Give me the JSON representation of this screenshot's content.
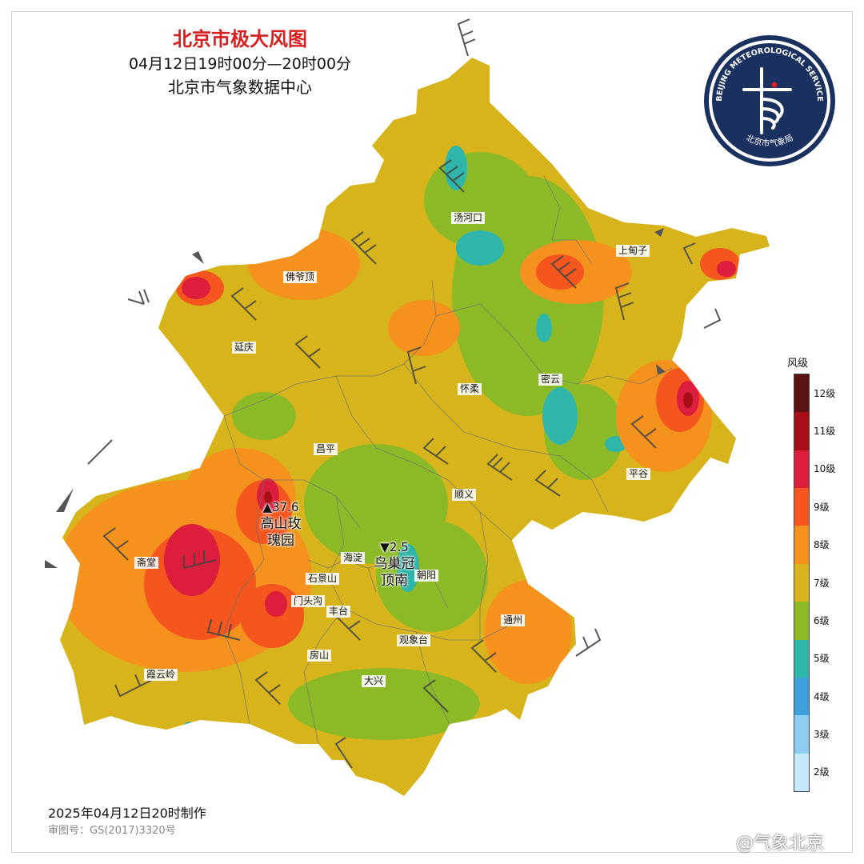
{
  "title": {
    "main": "北京市极大风图",
    "period": "04月12日19时00分—20时00分",
    "source": "北京市气象数据中心"
  },
  "logo": {
    "arc_text": "BEIJING METEOROLOGICAL SERVICE",
    "name": "北京市气象局",
    "icon": "meteorological-service-emblem"
  },
  "places": {
    "tanghekou": "汤河口",
    "shangdianzi": "上甸子",
    "foyeding": "佛爷顶",
    "yanqing": "延庆",
    "huairou": "怀柔",
    "miyun": "密云",
    "changping": "昌平",
    "pinggu": "平谷",
    "shunyi": "顺义",
    "haidian": "海淀",
    "chaoyang": "朝阳",
    "zhaitang": "斋堂",
    "shijingshan": "石景山",
    "mentougou": "门头沟",
    "fengtai": "丰台",
    "tongzhou": "通州",
    "guanxiangtai": "观象台",
    "fangshan": "房山",
    "xiayunling": "霞云岭",
    "daxing": "大兴"
  },
  "extremes": {
    "max": {
      "name": "高山玫瑰园",
      "value": "37.6",
      "marker": "▲"
    },
    "min": {
      "name": "鸟巢冠顶南",
      "value": "2.5",
      "marker": "▼"
    }
  },
  "legend": {
    "title": "风级",
    "levels": [
      {
        "label": "12级",
        "color": "#5c1212"
      },
      {
        "label": "11级",
        "color": "#a80f15"
      },
      {
        "label": "10级",
        "color": "#dc1d3b"
      },
      {
        "label": "9级",
        "color": "#f4561e"
      },
      {
        "label": "8级",
        "color": "#f5921e"
      },
      {
        "label": "7级",
        "color": "#d7b41b"
      },
      {
        "label": "6级",
        "color": "#8cba27"
      },
      {
        "label": "5级",
        "color": "#2fb5a9"
      },
      {
        "label": "4级",
        "color": "#3d9fdc"
      },
      {
        "label": "3级",
        "color": "#8ccdf1"
      },
      {
        "label": "2级",
        "color": "#c6e8fb"
      }
    ]
  },
  "footer": {
    "made": "2025年04月12日20时制作",
    "approval": "审图号：GS(2017)3320号"
  },
  "watermark": "@气象北京"
}
